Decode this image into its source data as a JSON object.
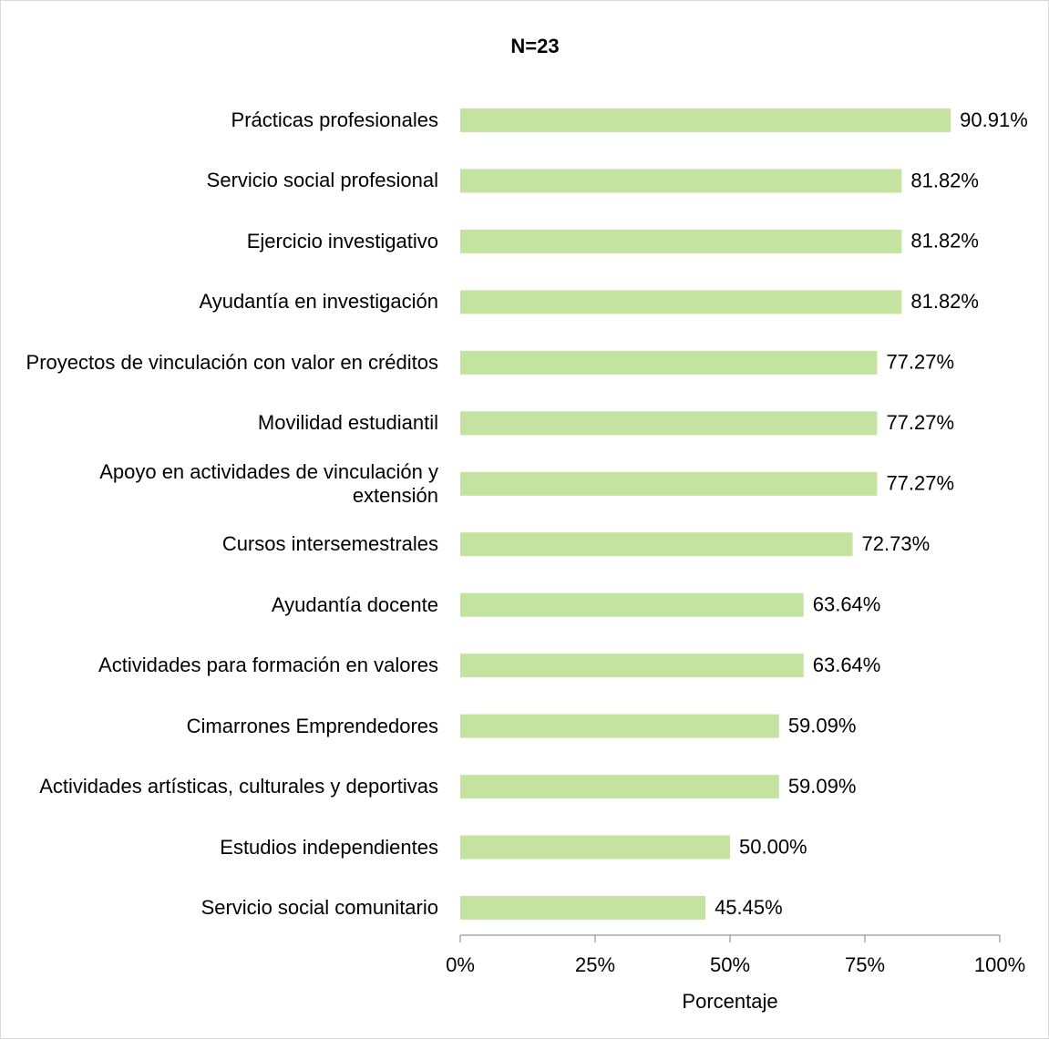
{
  "chart_data": {
    "type": "bar",
    "orientation": "horizontal",
    "title": "N=23",
    "categories": [
      "Prácticas profesionales",
      "Servicio social profesional",
      "Ejercicio investigativo",
      "Ayudantía en investigación",
      "Proyectos de vinculación con valor en créditos",
      "Movilidad estudiantil",
      "Apoyo en actividades de vinculación y extensión",
      "Cursos intersemestrales",
      "Ayudantía docente",
      "Actividades para formación en valores",
      "Cimarrones Emprendedores",
      "Actividades artísticas, culturales y deportivas",
      "Estudios independientes",
      "Servicio social comunitario"
    ],
    "values": [
      90.91,
      81.82,
      81.82,
      81.82,
      77.27,
      77.27,
      77.27,
      72.73,
      63.64,
      63.64,
      59.09,
      59.09,
      50.0,
      45.45
    ],
    "value_labels": [
      "90.91%",
      "81.82%",
      "81.82%",
      "81.82%",
      "77.27%",
      "77.27%",
      "77.27%",
      "72.73%",
      "63.64%",
      "63.64%",
      "59.09%",
      "59.09%",
      "50.00%",
      "45.45%"
    ],
    "color": "#c5e3a0",
    "xlabel": "Porcentaje",
    "xlim": [
      0,
      100
    ],
    "xticks": [
      {
        "value": 0,
        "label": "0%"
      },
      {
        "value": 25,
        "label": "25%"
      },
      {
        "value": 50,
        "label": "50%"
      },
      {
        "value": 75,
        "label": "75%"
      },
      {
        "value": 100,
        "label": "100%"
      }
    ],
    "grid": false
  }
}
